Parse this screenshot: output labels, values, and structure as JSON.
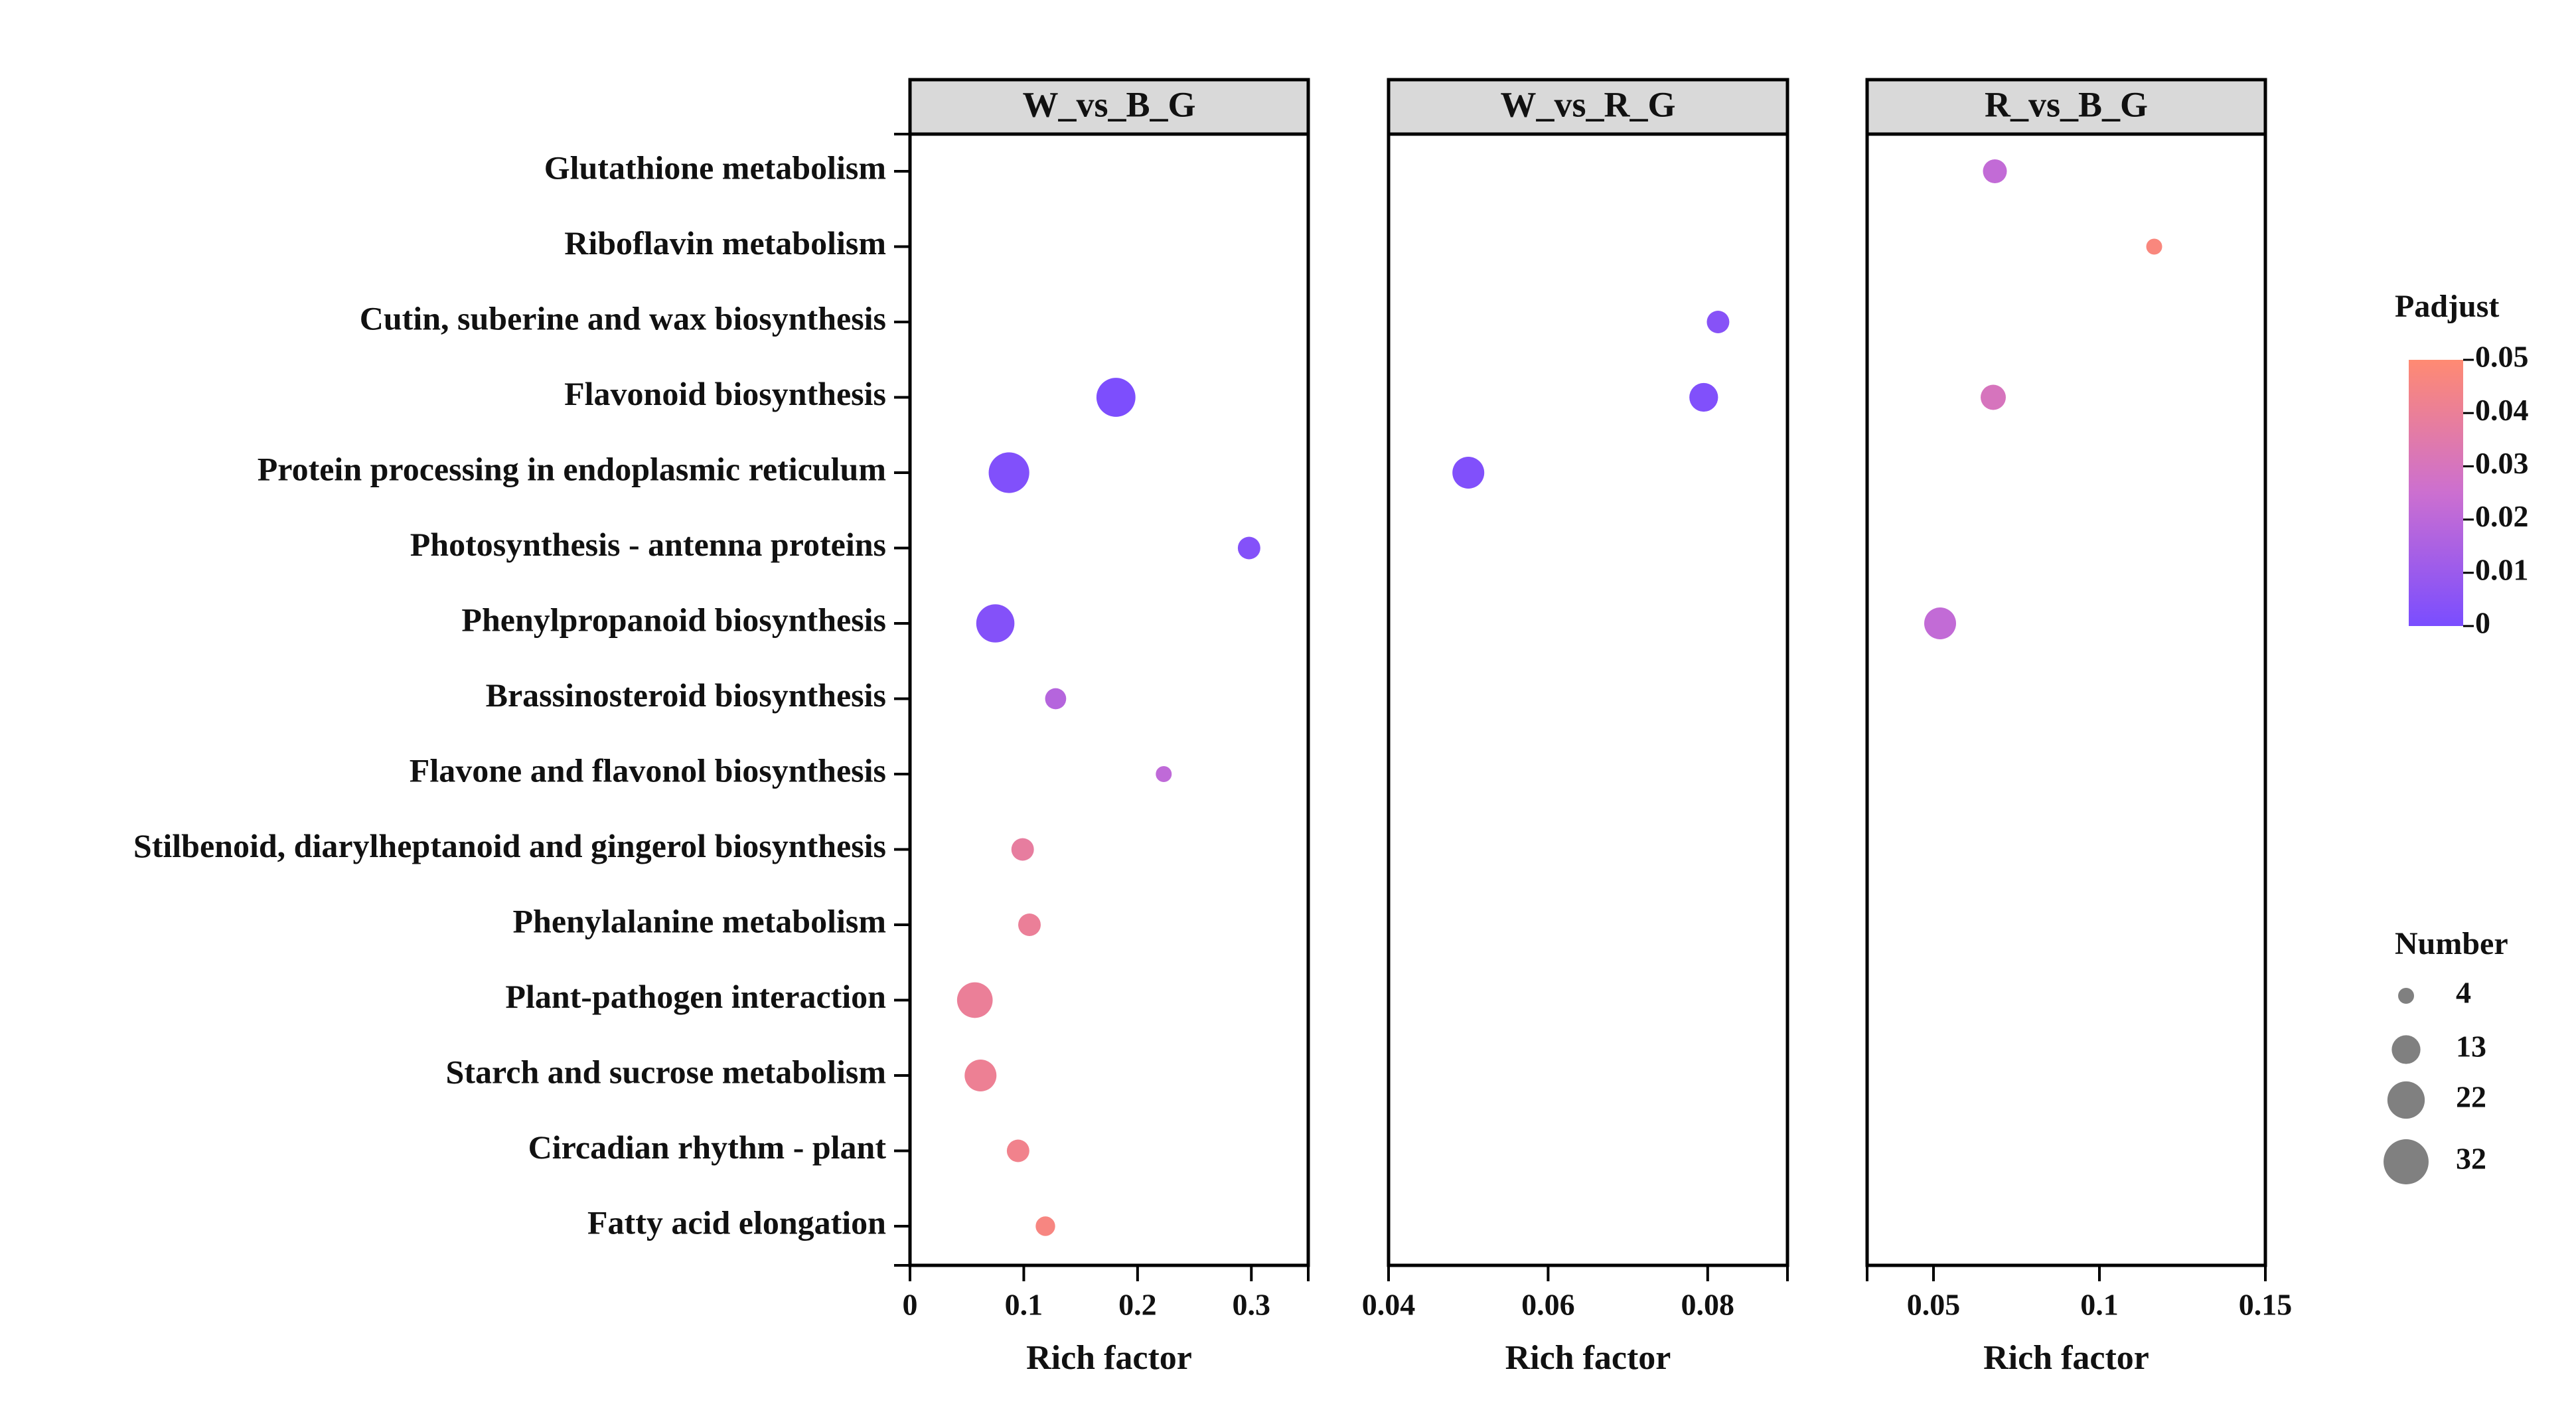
{
  "chart_data": {
    "type": "scatter",
    "subtype": "bubble",
    "categories": [
      "Glutathione metabolism",
      "Riboflavin metabolism",
      "Cutin, suberine and wax biosynthesis",
      "Flavonoid biosynthesis",
      "Protein processing in endoplasmic reticulum",
      "Photosynthesis - antenna proteins",
      "Phenylpropanoid biosynthesis",
      "Brassinosteroid biosynthesis",
      "Flavone and flavonol biosynthesis",
      "Stilbenoid, diarylheptanoid and gingerol biosynthesis",
      "Phenylalanine metabolism",
      "Plant-pathogen interaction",
      "Starch and sucrose metabolism",
      "Circadian rhythm - plant",
      "Fatty acid elongation"
    ],
    "panels": [
      {
        "title": "W_vs_B_G",
        "xlabel": "Rich factor",
        "xlim": [
          0,
          0.35
        ],
        "ticks": [
          0,
          0.1,
          0.2,
          0.3
        ],
        "tick_labels": [
          "0",
          "0.1",
          "0.2",
          "0.3"
        ],
        "points": [
          {
            "category": "Flavonoid biosynthesis",
            "x": 0.181,
            "number": 24,
            "padjust": 0.001
          },
          {
            "category": "Protein processing in endoplasmic reticulum",
            "x": 0.087,
            "number": 26,
            "padjust": 0.002
          },
          {
            "category": "Photosynthesis - antenna proteins",
            "x": 0.298,
            "number": 8,
            "padjust": 0.003
          },
          {
            "category": "Phenylpropanoid biosynthesis",
            "x": 0.075,
            "number": 23,
            "padjust": 0.003
          },
          {
            "category": "Brassinosteroid biosynthesis",
            "x": 0.128,
            "number": 7,
            "padjust": 0.018
          },
          {
            "category": "Flavone and flavonol biosynthesis",
            "x": 0.223,
            "number": 4,
            "padjust": 0.021
          },
          {
            "category": "Stilbenoid, diarylheptanoid and gingerol biosynthesis",
            "x": 0.099,
            "number": 8,
            "padjust": 0.038
          },
          {
            "category": "Phenylalanine metabolism",
            "x": 0.105,
            "number": 8,
            "padjust": 0.04
          },
          {
            "category": "Plant-pathogen interaction",
            "x": 0.057,
            "number": 20,
            "padjust": 0.04
          },
          {
            "category": "Starch and sucrose metabolism",
            "x": 0.062,
            "number": 16,
            "padjust": 0.041
          },
          {
            "category": "Circadian rhythm - plant",
            "x": 0.095,
            "number": 8,
            "padjust": 0.043
          },
          {
            "category": "Fatty acid elongation",
            "x": 0.119,
            "number": 6,
            "padjust": 0.046
          }
        ]
      },
      {
        "title": "W_vs_R_G",
        "xlabel": "Rich factor",
        "xlim": [
          0.04,
          0.09
        ],
        "ticks": [
          0.04,
          0.06,
          0.08
        ],
        "tick_labels": [
          "0.04",
          "0.06",
          "0.08"
        ],
        "points": [
          {
            "category": "Cutin, suberine and wax biosynthesis",
            "x": 0.0813,
            "number": 8,
            "padjust": 0.004
          },
          {
            "category": "Flavonoid biosynthesis",
            "x": 0.0795,
            "number": 13,
            "padjust": 0.002
          },
          {
            "category": "Protein processing in endoplasmic reticulum",
            "x": 0.05,
            "number": 16,
            "padjust": 0.002
          }
        ]
      },
      {
        "title": "R_vs_B_G",
        "xlabel": "Rich factor",
        "xlim": [
          0.03,
          0.15
        ],
        "ticks": [
          0.05,
          0.1,
          0.15
        ],
        "tick_labels": [
          "0.05",
          "0.1",
          "0.15"
        ],
        "points": [
          {
            "category": "Glutathione metabolism",
            "x": 0.0685,
            "number": 9,
            "padjust": 0.022
          },
          {
            "category": "Riboflavin metabolism",
            "x": 0.1165,
            "number": 4,
            "padjust": 0.047
          },
          {
            "category": "Flavonoid biosynthesis",
            "x": 0.068,
            "number": 10,
            "padjust": 0.03
          },
          {
            "category": "Phenylpropanoid biosynthesis",
            "x": 0.052,
            "number": 16,
            "padjust": 0.022
          }
        ]
      }
    ],
    "color_legend": {
      "title": "Padjust",
      "min": 0,
      "max": 0.05,
      "ticks": [
        0.05,
        0.04,
        0.03,
        0.02,
        0.01,
        0
      ],
      "tick_labels": [
        "0.05",
        "0.04",
        "0.03",
        "0.02",
        "0.01",
        "0"
      ],
      "color_low": "#7a4dff",
      "color_mid": "#cc6fd0",
      "color_high": "#ff8a72"
    },
    "size_legend": {
      "title": "Number",
      "values": [
        4,
        13,
        22,
        32
      ],
      "labels": [
        "4",
        "13",
        "22",
        "32"
      ],
      "color": "#808080"
    },
    "legend_position": "right"
  }
}
